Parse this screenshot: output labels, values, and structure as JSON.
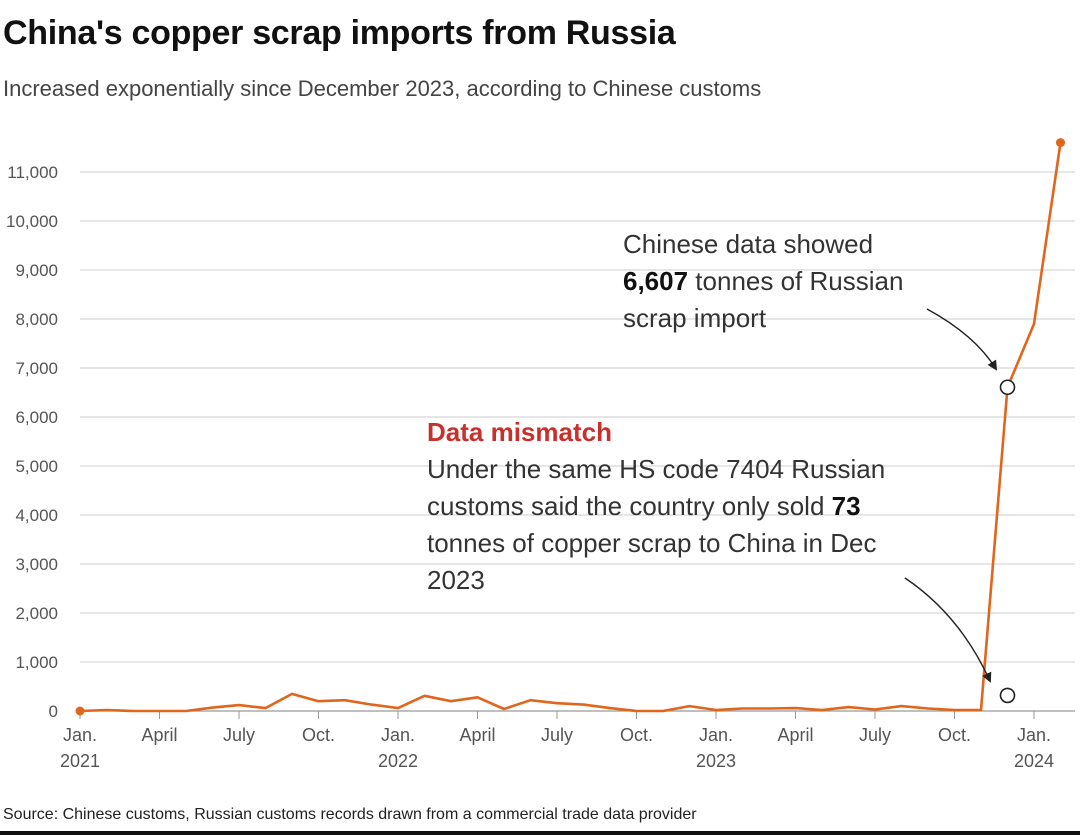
{
  "title": "China's copper scrap imports from Russia",
  "subtitle": "Increased exponentially since  December 2023, according to Chinese customs",
  "source": "Source: Chinese customs, Russian customs records drawn from a commercial trade data provider",
  "colors": {
    "series": "#e0661c",
    "grid": "#cccccc",
    "accent_red": "#c9302c",
    "text": "#333333"
  },
  "chart_data": {
    "type": "line",
    "title": "China's copper scrap imports from Russia",
    "xlabel": "",
    "ylabel": "",
    "ylim": [
      0,
      11000
    ],
    "yticks": [
      {
        "value": 0,
        "label": "0"
      },
      {
        "value": 1000,
        "label": "1,000"
      },
      {
        "value": 2000,
        "label": "2,000"
      },
      {
        "value": 3000,
        "label": "3,000"
      },
      {
        "value": 4000,
        "label": "4,000"
      },
      {
        "value": 5000,
        "label": "5,000"
      },
      {
        "value": 6000,
        "label": "6,000"
      },
      {
        "value": 7000,
        "label": "7,000"
      },
      {
        "value": 8000,
        "label": "8,000"
      },
      {
        "value": 9000,
        "label": "9,000"
      },
      {
        "value": 10000,
        "label": "10,000"
      },
      {
        "value": 11000,
        "label": "11,000"
      }
    ],
    "xticks": [
      {
        "x": "2021-01",
        "line1": "Jan.",
        "line2": "2021"
      },
      {
        "x": "2021-04",
        "line1": "April",
        "line2": ""
      },
      {
        "x": "2021-07",
        "line1": "July",
        "line2": ""
      },
      {
        "x": "2021-10",
        "line1": "Oct.",
        "line2": ""
      },
      {
        "x": "2022-01",
        "line1": "Jan.",
        "line2": "2022"
      },
      {
        "x": "2022-04",
        "line1": "April",
        "line2": ""
      },
      {
        "x": "2022-07",
        "line1": "July",
        "line2": ""
      },
      {
        "x": "2022-10",
        "line1": "Oct.",
        "line2": ""
      },
      {
        "x": "2023-01",
        "line1": "Jan.",
        "line2": "2023"
      },
      {
        "x": "2023-04",
        "line1": "April",
        "line2": ""
      },
      {
        "x": "2023-07",
        "line1": "July",
        "line2": ""
      },
      {
        "x": "2023-10",
        "line1": "Oct.",
        "line2": ""
      },
      {
        "x": "2024-01",
        "line1": "Jan.",
        "line2": "2024"
      }
    ],
    "series": [
      {
        "name": "Chinese customs",
        "x": [
          "2021-01",
          "2021-02",
          "2021-03",
          "2021-04",
          "2021-05",
          "2021-06",
          "2021-07",
          "2021-08",
          "2021-09",
          "2021-10",
          "2021-11",
          "2021-12",
          "2022-01",
          "2022-02",
          "2022-03",
          "2022-04",
          "2022-05",
          "2022-06",
          "2022-07",
          "2022-08",
          "2022-09",
          "2022-10",
          "2022-11",
          "2022-12",
          "2023-01",
          "2023-02",
          "2023-03",
          "2023-04",
          "2023-05",
          "2023-06",
          "2023-07",
          "2023-08",
          "2023-09",
          "2023-10",
          "2023-11",
          "2023-12",
          "2024-01",
          "2024-02"
        ],
        "values": [
          0,
          20,
          0,
          0,
          0,
          70,
          120,
          60,
          350,
          200,
          220,
          130,
          60,
          310,
          200,
          280,
          40,
          220,
          160,
          130,
          60,
          0,
          0,
          100,
          20,
          50,
          50,
          60,
          20,
          80,
          30,
          100,
          50,
          20,
          20,
          6607,
          7900,
          11600
        ]
      }
    ],
    "annotations": [
      {
        "id": "chinese",
        "x": "2023-12",
        "y": 6607,
        "lines": [
          [
            "Chinese data showed"
          ],
          [
            "6,607|b",
            " tonnes of Russian"
          ],
          [
            "scrap import"
          ]
        ]
      },
      {
        "id": "russian",
        "x": "2023-12",
        "y": 73,
        "title": "Data mismatch",
        "lines": [
          [
            "Under the same HS code 7404 Russian"
          ],
          [
            "customs said the country only sold ",
            "73|b"
          ],
          [
            "tonnes of copper scrap to China in Dec"
          ],
          [
            "2023"
          ]
        ]
      }
    ]
  }
}
